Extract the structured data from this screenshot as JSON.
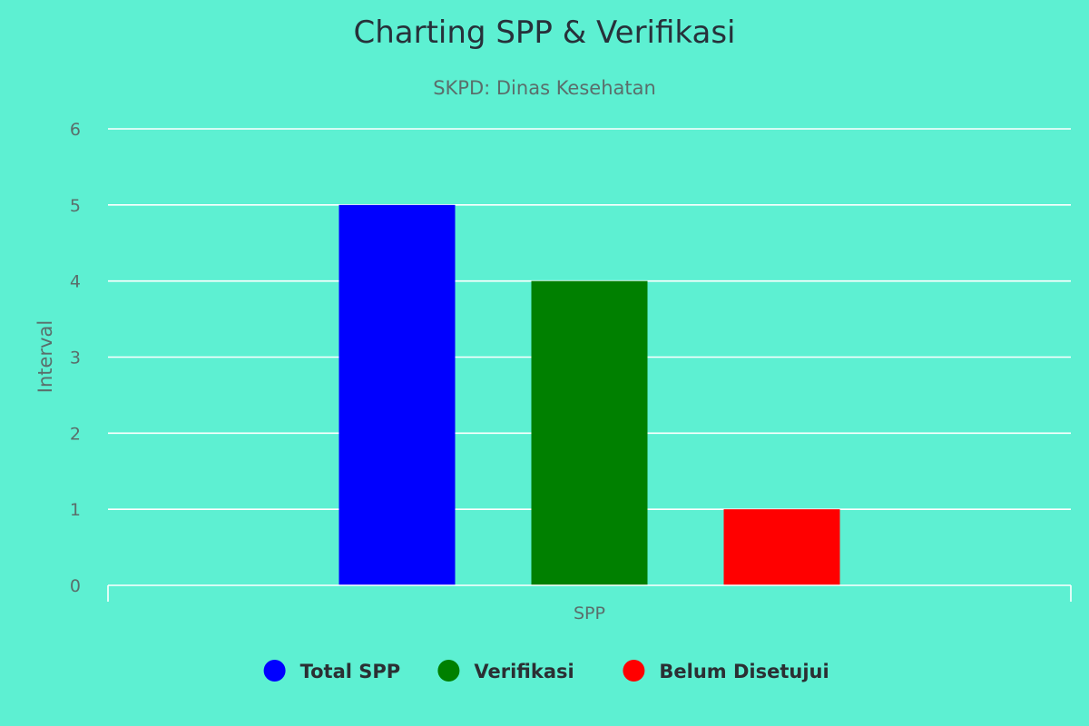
{
  "chart_data": {
    "type": "bar",
    "title": "Charting SPP & Verifikasi",
    "subtitle": "SKPD: Dinas Kesehatan",
    "xlabel": "",
    "ylabel": "Interval",
    "categories": [
      "SPP"
    ],
    "series": [
      {
        "name": "Total SPP",
        "values": [
          5
        ],
        "color": "#0000ff"
      },
      {
        "name": "Verifikasi",
        "values": [
          4
        ],
        "color": "#008000"
      },
      {
        "name": "Belum Disetujui",
        "values": [
          1
        ],
        "color": "#ff0000"
      }
    ],
    "ylim": [
      0,
      6
    ],
    "yticks": [
      "0",
      "1",
      "2",
      "3",
      "4",
      "5",
      "6"
    ],
    "grid": true,
    "legend_position": "bottom-center",
    "background": "#5df0d2"
  }
}
